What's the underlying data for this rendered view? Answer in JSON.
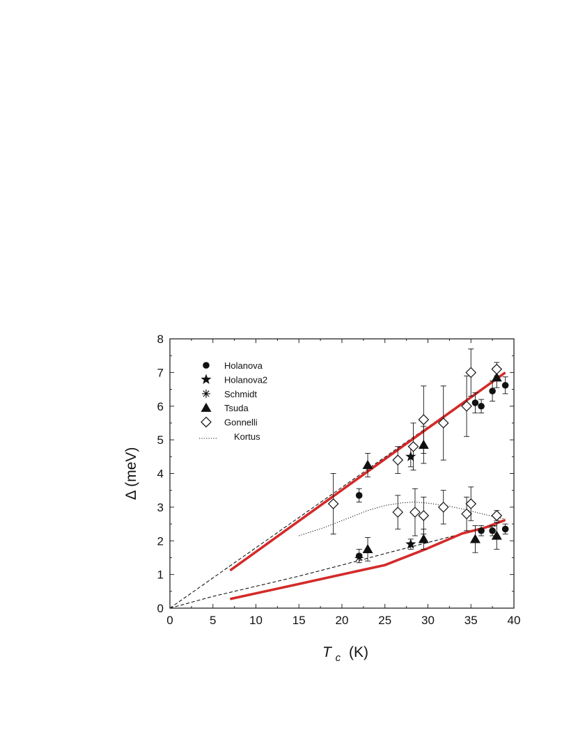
{
  "chart_data": {
    "type": "scatter",
    "xlabel": {
      "main": "T",
      "sub": "c",
      "unit": "(K)"
    },
    "ylabel": "Δ (meV)",
    "xlim": [
      0,
      40
    ],
    "ylim": [
      0,
      8
    ],
    "xticks": [
      0,
      5,
      10,
      15,
      20,
      25,
      30,
      35,
      40
    ],
    "yticks": [
      0,
      1,
      2,
      3,
      4,
      5,
      6,
      7,
      8
    ],
    "grid": false,
    "legend_position": "top-left",
    "legend": [
      {
        "label": "Holanova",
        "marker": "filled-circle"
      },
      {
        "label": "Holanova2",
        "marker": "filled-star"
      },
      {
        "label": "Schmidt",
        "marker": "asterisk"
      },
      {
        "label": "Tsuda",
        "marker": "filled-triangle"
      },
      {
        "label": "Gonnelli",
        "marker": "open-diamond"
      },
      {
        "label": "Kortus",
        "marker": "dotted-line"
      }
    ],
    "series": [
      {
        "name": "Holanova",
        "marker": "filled-circle",
        "points": [
          {
            "x": 22.0,
            "y": 3.35,
            "err": 0.2
          },
          {
            "x": 22.0,
            "y": 1.55,
            "err": 0.2
          },
          {
            "x": 35.5,
            "y": 6.1,
            "err": 0.3
          },
          {
            "x": 36.2,
            "y": 6.0,
            "err": 0.2
          },
          {
            "x": 37.5,
            "y": 6.45,
            "err": 0.3
          },
          {
            "x": 39.0,
            "y": 6.62,
            "err": 0.25
          },
          {
            "x": 36.2,
            "y": 2.3,
            "err": 0.15
          },
          {
            "x": 37.5,
            "y": 2.3,
            "err": 0.15
          },
          {
            "x": 39.0,
            "y": 2.35,
            "err": 0.15
          }
        ]
      },
      {
        "name": "Holanova2",
        "marker": "filled-star",
        "points": [
          {
            "x": 28.0,
            "y": 4.5,
            "err": 0.3
          },
          {
            "x": 28.0,
            "y": 1.9,
            "err": 0.15
          }
        ]
      },
      {
        "name": "Schmidt",
        "marker": "asterisk",
        "points": [
          {
            "x": 22.0,
            "y": 1.5
          }
        ]
      },
      {
        "name": "Tsuda",
        "marker": "filled-triangle",
        "points": [
          {
            "x": 23.0,
            "y": 4.25,
            "err": 0.35
          },
          {
            "x": 23.0,
            "y": 1.75,
            "err": 0.35
          },
          {
            "x": 29.5,
            "y": 4.85,
            "err": 0.55
          },
          {
            "x": 29.5,
            "y": 2.05,
            "err": 0.3
          },
          {
            "x": 35.5,
            "y": 2.05,
            "err": 0.4
          },
          {
            "x": 38.0,
            "y": 6.85,
            "err": 0.3
          },
          {
            "x": 38.0,
            "y": 2.15,
            "err": 0.4
          }
        ]
      },
      {
        "name": "Gonnelli",
        "marker": "open-diamond",
        "points": [
          {
            "x": 19.0,
            "y": 3.1,
            "err": 0.9
          },
          {
            "x": 26.5,
            "y": 4.4,
            "err": 0.4
          },
          {
            "x": 26.5,
            "y": 2.85,
            "err": 0.5
          },
          {
            "x": 28.3,
            "y": 4.8,
            "err": 0.7
          },
          {
            "x": 28.5,
            "y": 2.85,
            "err": 0.7
          },
          {
            "x": 29.5,
            "y": 5.6,
            "err": 1.0
          },
          {
            "x": 29.5,
            "y": 2.75,
            "err": 0.55
          },
          {
            "x": 31.8,
            "y": 5.5,
            "err": 1.1
          },
          {
            "x": 31.8,
            "y": 3.0,
            "err": 0.5
          },
          {
            "x": 34.5,
            "y": 6.0,
            "err": 0.9
          },
          {
            "x": 34.5,
            "y": 2.8,
            "err": 0.5
          },
          {
            "x": 35.0,
            "y": 7.0,
            "err": 0.7
          },
          {
            "x": 35.0,
            "y": 3.1,
            "err": 0.5
          },
          {
            "x": 38.0,
            "y": 7.1,
            "err": 0.2
          },
          {
            "x": 38.0,
            "y": 2.75,
            "err": 0.15
          }
        ]
      }
    ],
    "curves": [
      {
        "name": "Kortus",
        "style": "dotted",
        "color": "#000000",
        "points": [
          [
            15,
            2.15
          ],
          [
            18,
            2.4
          ],
          [
            21,
            2.7
          ],
          [
            23,
            2.9
          ],
          [
            25,
            3.05
          ],
          [
            27,
            3.13
          ],
          [
            28.5,
            3.15
          ],
          [
            30,
            3.12
          ],
          [
            32,
            3.05
          ],
          [
            34,
            2.95
          ],
          [
            36,
            2.82
          ],
          [
            38,
            2.7
          ],
          [
            39,
            2.65
          ]
        ]
      },
      {
        "name": "",
        "style": "dashed",
        "color": "#000000",
        "points": [
          [
            0,
            0
          ],
          [
            39,
            7.0
          ]
        ]
      },
      {
        "name": "",
        "style": "dashed",
        "color": "#000000",
        "points": [
          [
            0,
            0
          ],
          [
            5,
            0.35
          ],
          [
            10,
            0.65
          ],
          [
            15,
            0.95
          ],
          [
            20,
            1.28
          ],
          [
            25,
            1.62
          ],
          [
            30,
            1.95
          ],
          [
            35,
            2.28
          ],
          [
            38,
            2.45
          ]
        ]
      },
      {
        "name": "",
        "style": "solid",
        "color": "#d42a2a",
        "points": [
          [
            7,
            1.12
          ],
          [
            39,
            7.0
          ]
        ]
      },
      {
        "name": "",
        "style": "solid",
        "color": "#d42a2a",
        "points": [
          [
            7,
            0.27
          ],
          [
            15,
            0.72
          ],
          [
            20,
            1.0
          ],
          [
            25,
            1.28
          ],
          [
            30,
            1.78
          ],
          [
            34,
            2.22
          ],
          [
            36.5,
            2.38
          ],
          [
            39,
            2.62
          ]
        ]
      }
    ]
  }
}
